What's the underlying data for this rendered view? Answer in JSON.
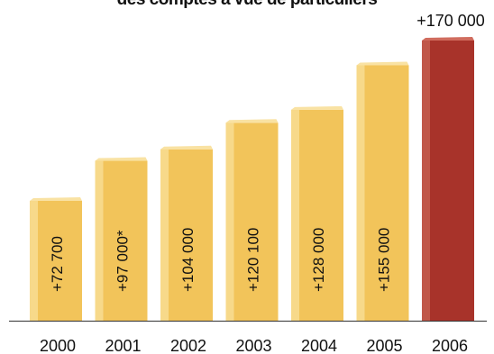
{
  "chart_data": {
    "type": "bar",
    "title": "des comptes à vue de particuliers",
    "xlabel": "",
    "ylabel": "",
    "ylim": [
      0,
      180000
    ],
    "grid": false,
    "categories": [
      "2000",
      "2001",
      "2002",
      "2003",
      "2004",
      "2005",
      "2006"
    ],
    "values": [
      72700,
      97000,
      104000,
      120100,
      128000,
      155000,
      170000
    ],
    "data_labels": [
      "+72 700",
      "+97 000*",
      "+104 000",
      "+120 100",
      "+128 000",
      "+155 000",
      "+170 000"
    ],
    "colors": {
      "bar_face": "#f2c45a",
      "bar_light": "#f7d98a",
      "bar_top": "#f9e2a3",
      "highlight_face": "#a8332a",
      "highlight_light": "#c0584a",
      "highlight_top": "#d06c5e",
      "axis": "#333333"
    },
    "highlight_index": 6
  }
}
